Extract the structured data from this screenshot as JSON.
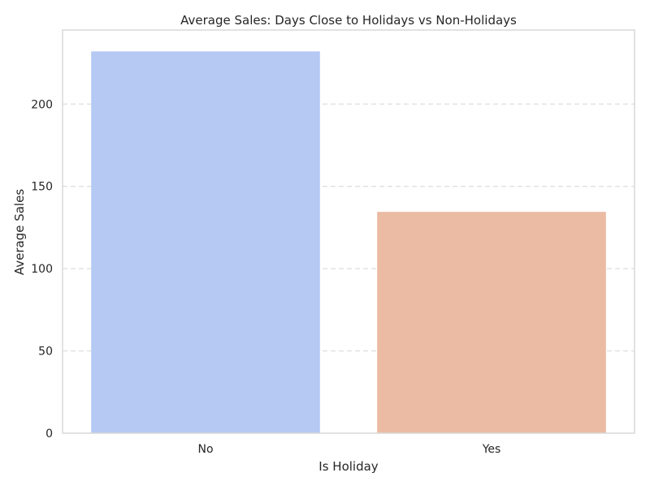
{
  "chart_data": {
    "type": "bar",
    "title": "Average Sales: Days Close to Holidays vs Non-Holidays",
    "xlabel": "Is Holiday",
    "ylabel": "Average Sales",
    "categories": [
      "No",
      "Yes"
    ],
    "values": [
      232,
      134.5
    ],
    "colors": [
      "#b5c9f3",
      "#ebbba4"
    ],
    "ylim": [
      0,
      245
    ],
    "yticks": [
      0,
      50,
      100,
      150,
      200
    ],
    "ytick_labels": [
      "0",
      "50",
      "100",
      "150",
      "200"
    ],
    "grid": "y-dashed",
    "legend": "none"
  }
}
